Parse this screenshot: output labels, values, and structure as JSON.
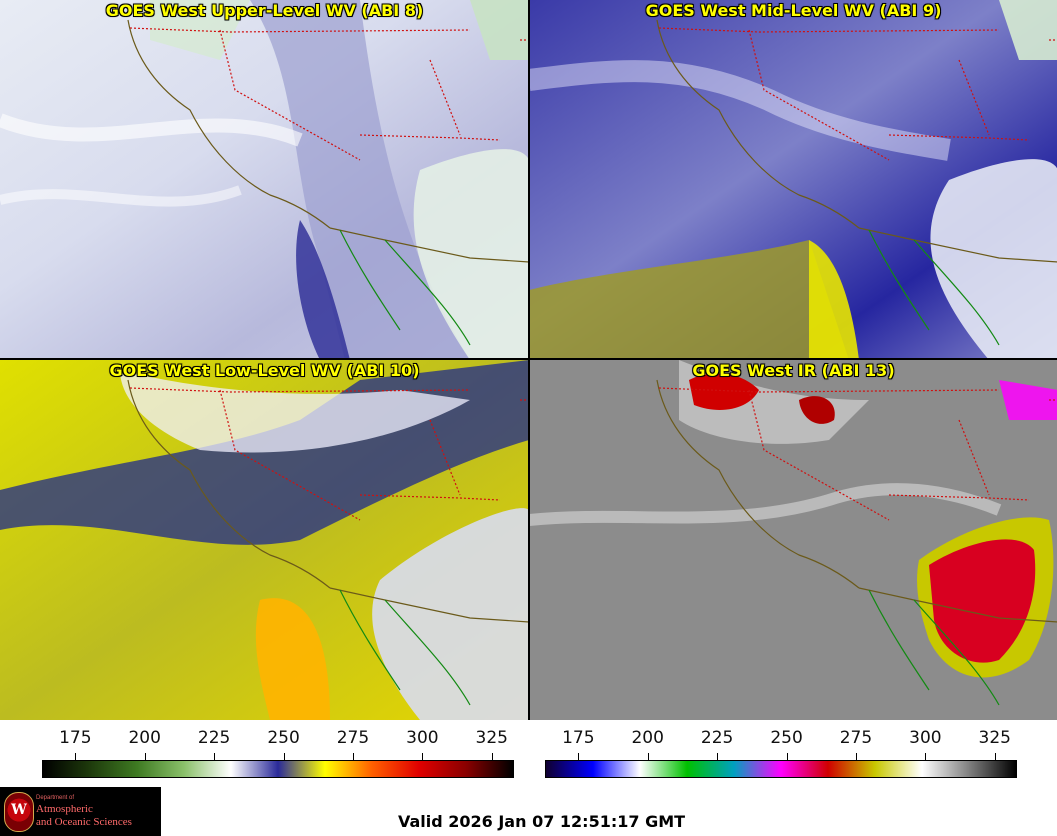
{
  "panels": [
    {
      "id": "upper",
      "title": "GOES West Upper-Level WV (ABI 8)"
    },
    {
      "id": "mid",
      "title": "GOES West Mid-Level WV (ABI 9)"
    },
    {
      "id": "low",
      "title": "GOES West Low-Level WV (ABI 10)"
    },
    {
      "id": "ir",
      "title": "GOES West IR (ABI 13)"
    }
  ],
  "colorbars": {
    "wv": {
      "ticks": [
        "175",
        "200",
        "225",
        "250",
        "275",
        "300",
        "325"
      ],
      "range": [
        163,
        333
      ],
      "stops": [
        "#000000",
        "#1e3a0c",
        "#3e7a22",
        "#8ac06a",
        "#ffffff",
        "#2a2a9a",
        "#ffff00",
        "#ff6000",
        "#e00000",
        "#8a0000",
        "#000000"
      ]
    },
    "ir": {
      "ticks": [
        "175",
        "200",
        "225",
        "250",
        "275",
        "300",
        "325"
      ],
      "range": [
        163,
        333
      ],
      "stops": [
        "#100030",
        "#0000ff",
        "#ffffff",
        "#00c000",
        "#00a0c0",
        "#ff00ff",
        "#d00000",
        "#c8c800",
        "#ffffff",
        "#808080",
        "#000000"
      ]
    }
  },
  "logo": {
    "dept": "Department of",
    "line1": "Atmospheric",
    "line2": "and Oceanic Sciences",
    "seal": "W"
  },
  "footer": {
    "valid_text": "Valid 2026 Jan 07 12:51:17 GMT"
  }
}
